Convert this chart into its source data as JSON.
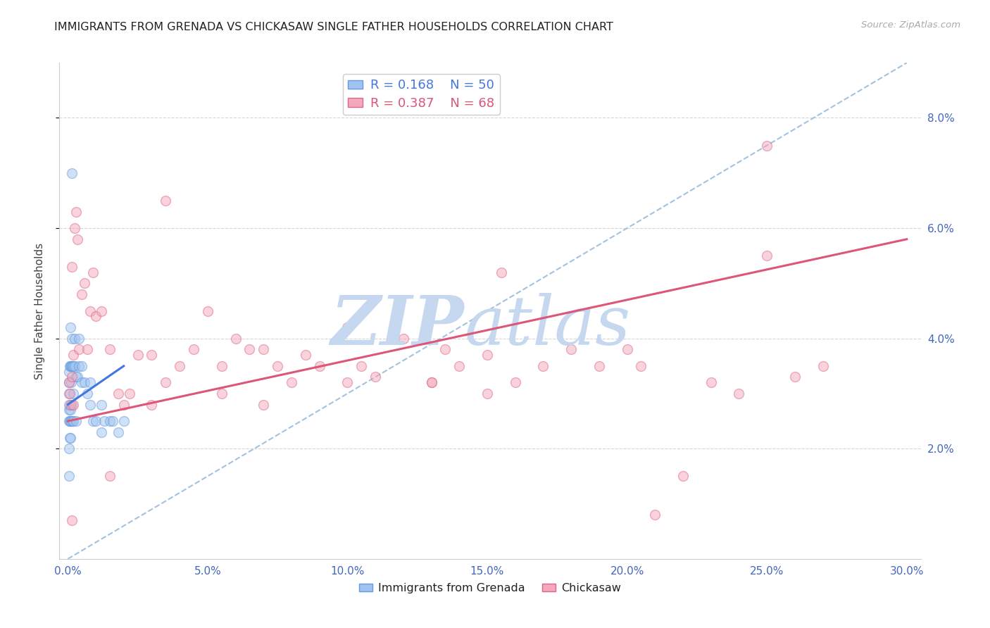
{
  "title": "IMMIGRANTS FROM GRENADA VS CHICKASAW SINGLE FATHER HOUSEHOLDS CORRELATION CHART",
  "source": "Source: ZipAtlas.com",
  "ylabel": "Single Father Households",
  "x_tick_labels": [
    "0.0%",
    "5.0%",
    "10.0%",
    "15.0%",
    "20.0%",
    "25.0%",
    "30.0%"
  ],
  "x_tick_values": [
    0.0,
    5.0,
    10.0,
    15.0,
    20.0,
    25.0,
    30.0
  ],
  "y_tick_labels": [
    "2.0%",
    "4.0%",
    "6.0%",
    "8.0%"
  ],
  "y_tick_values": [
    2.0,
    4.0,
    6.0,
    8.0
  ],
  "xlim": [
    -0.3,
    30.5
  ],
  "ylim": [
    0.0,
    9.0
  ],
  "legend_entries": [
    {
      "label": "Immigrants from Grenada",
      "R": 0.168,
      "N": 50
    },
    {
      "label": "Chickasaw",
      "R": 0.387,
      "N": 68
    }
  ],
  "blue_scatter_x": [
    0.05,
    0.05,
    0.05,
    0.05,
    0.05,
    0.05,
    0.08,
    0.08,
    0.1,
    0.1,
    0.1,
    0.1,
    0.12,
    0.12,
    0.12,
    0.15,
    0.15,
    0.15,
    0.18,
    0.18,
    0.2,
    0.2,
    0.2,
    0.25,
    0.25,
    0.3,
    0.3,
    0.35,
    0.4,
    0.4,
    0.5,
    0.5,
    0.6,
    0.7,
    0.8,
    0.8,
    0.9,
    1.0,
    1.2,
    1.2,
    1.3,
    1.5,
    1.6,
    1.8,
    2.0,
    0.05,
    0.05,
    0.08,
    0.1,
    0.15
  ],
  "blue_scatter_y": [
    2.5,
    2.7,
    2.8,
    3.0,
    3.2,
    3.4,
    2.5,
    3.5,
    2.5,
    2.7,
    3.5,
    4.2,
    2.5,
    3.2,
    3.5,
    2.8,
    3.5,
    4.0,
    2.5,
    3.5,
    2.5,
    3.0,
    3.5,
    3.5,
    4.0,
    2.5,
    3.3,
    3.3,
    3.5,
    4.0,
    3.2,
    3.5,
    3.2,
    3.0,
    2.8,
    3.2,
    2.5,
    2.5,
    2.3,
    2.8,
    2.5,
    2.5,
    2.5,
    2.3,
    2.5,
    1.5,
    2.0,
    2.2,
    2.2,
    7.0
  ],
  "pink_scatter_x": [
    0.05,
    0.08,
    0.1,
    0.15,
    0.15,
    0.2,
    0.2,
    0.25,
    0.3,
    0.35,
    0.4,
    0.5,
    0.6,
    0.7,
    0.8,
    0.9,
    1.0,
    1.2,
    1.5,
    1.8,
    2.0,
    2.2,
    2.5,
    3.0,
    3.5,
    3.5,
    4.0,
    4.5,
    5.0,
    5.5,
    6.0,
    6.5,
    7.0,
    7.5,
    8.0,
    8.5,
    9.0,
    10.0,
    10.5,
    11.0,
    12.0,
    13.0,
    13.5,
    14.0,
    15.0,
    15.5,
    16.0,
    17.0,
    18.0,
    19.0,
    20.0,
    20.5,
    21.0,
    22.0,
    23.0,
    24.0,
    25.0,
    26.0,
    27.0,
    15.0,
    13.0,
    5.5,
    0.15,
    1.5,
    3.0,
    7.0,
    10.0,
    25.0
  ],
  "pink_scatter_y": [
    3.2,
    3.0,
    2.8,
    3.3,
    5.3,
    2.8,
    3.7,
    6.0,
    6.3,
    5.8,
    3.8,
    4.8,
    5.0,
    3.8,
    4.5,
    5.2,
    4.4,
    4.5,
    3.8,
    3.0,
    2.8,
    3.0,
    3.7,
    3.7,
    3.2,
    6.5,
    3.5,
    3.8,
    4.5,
    3.5,
    4.0,
    3.8,
    3.8,
    3.5,
    3.2,
    3.7,
    3.5,
    4.2,
    3.5,
    3.3,
    4.0,
    3.2,
    3.8,
    3.5,
    3.7,
    5.2,
    3.2,
    3.5,
    3.8,
    3.5,
    3.8,
    3.5,
    0.8,
    1.5,
    3.2,
    3.0,
    5.5,
    3.3,
    3.5,
    3.0,
    3.2,
    3.0,
    0.7,
    1.5,
    2.8,
    2.8,
    3.2,
    7.5
  ],
  "blue_trendline_x": [
    0.0,
    2.0
  ],
  "blue_trendline_y": [
    2.8,
    3.5
  ],
  "pink_trendline_x": [
    0.0,
    30.0
  ],
  "pink_trendline_y": [
    2.5,
    5.8
  ],
  "dashed_line_x": [
    0.0,
    30.0
  ],
  "dashed_line_y": [
    0.0,
    9.0
  ],
  "scatter_alpha": 0.5,
  "scatter_size": 100,
  "scatter_linewidth": 1.0,
  "blue_color": "#a0c4f0",
  "blue_edge_color": "#6699dd",
  "pink_color": "#f5a8bb",
  "pink_edge_color": "#dd6688",
  "blue_trend_color": "#4477dd",
  "pink_trend_color": "#dd5577",
  "dashed_color": "#99bbdd",
  "grid_color": "#cccccc",
  "title_color": "#222222",
  "axis_tick_color": "#4466bb",
  "ylabel_color": "#444444",
  "watermark_color": "#c5d8f0",
  "background_color": "#ffffff"
}
